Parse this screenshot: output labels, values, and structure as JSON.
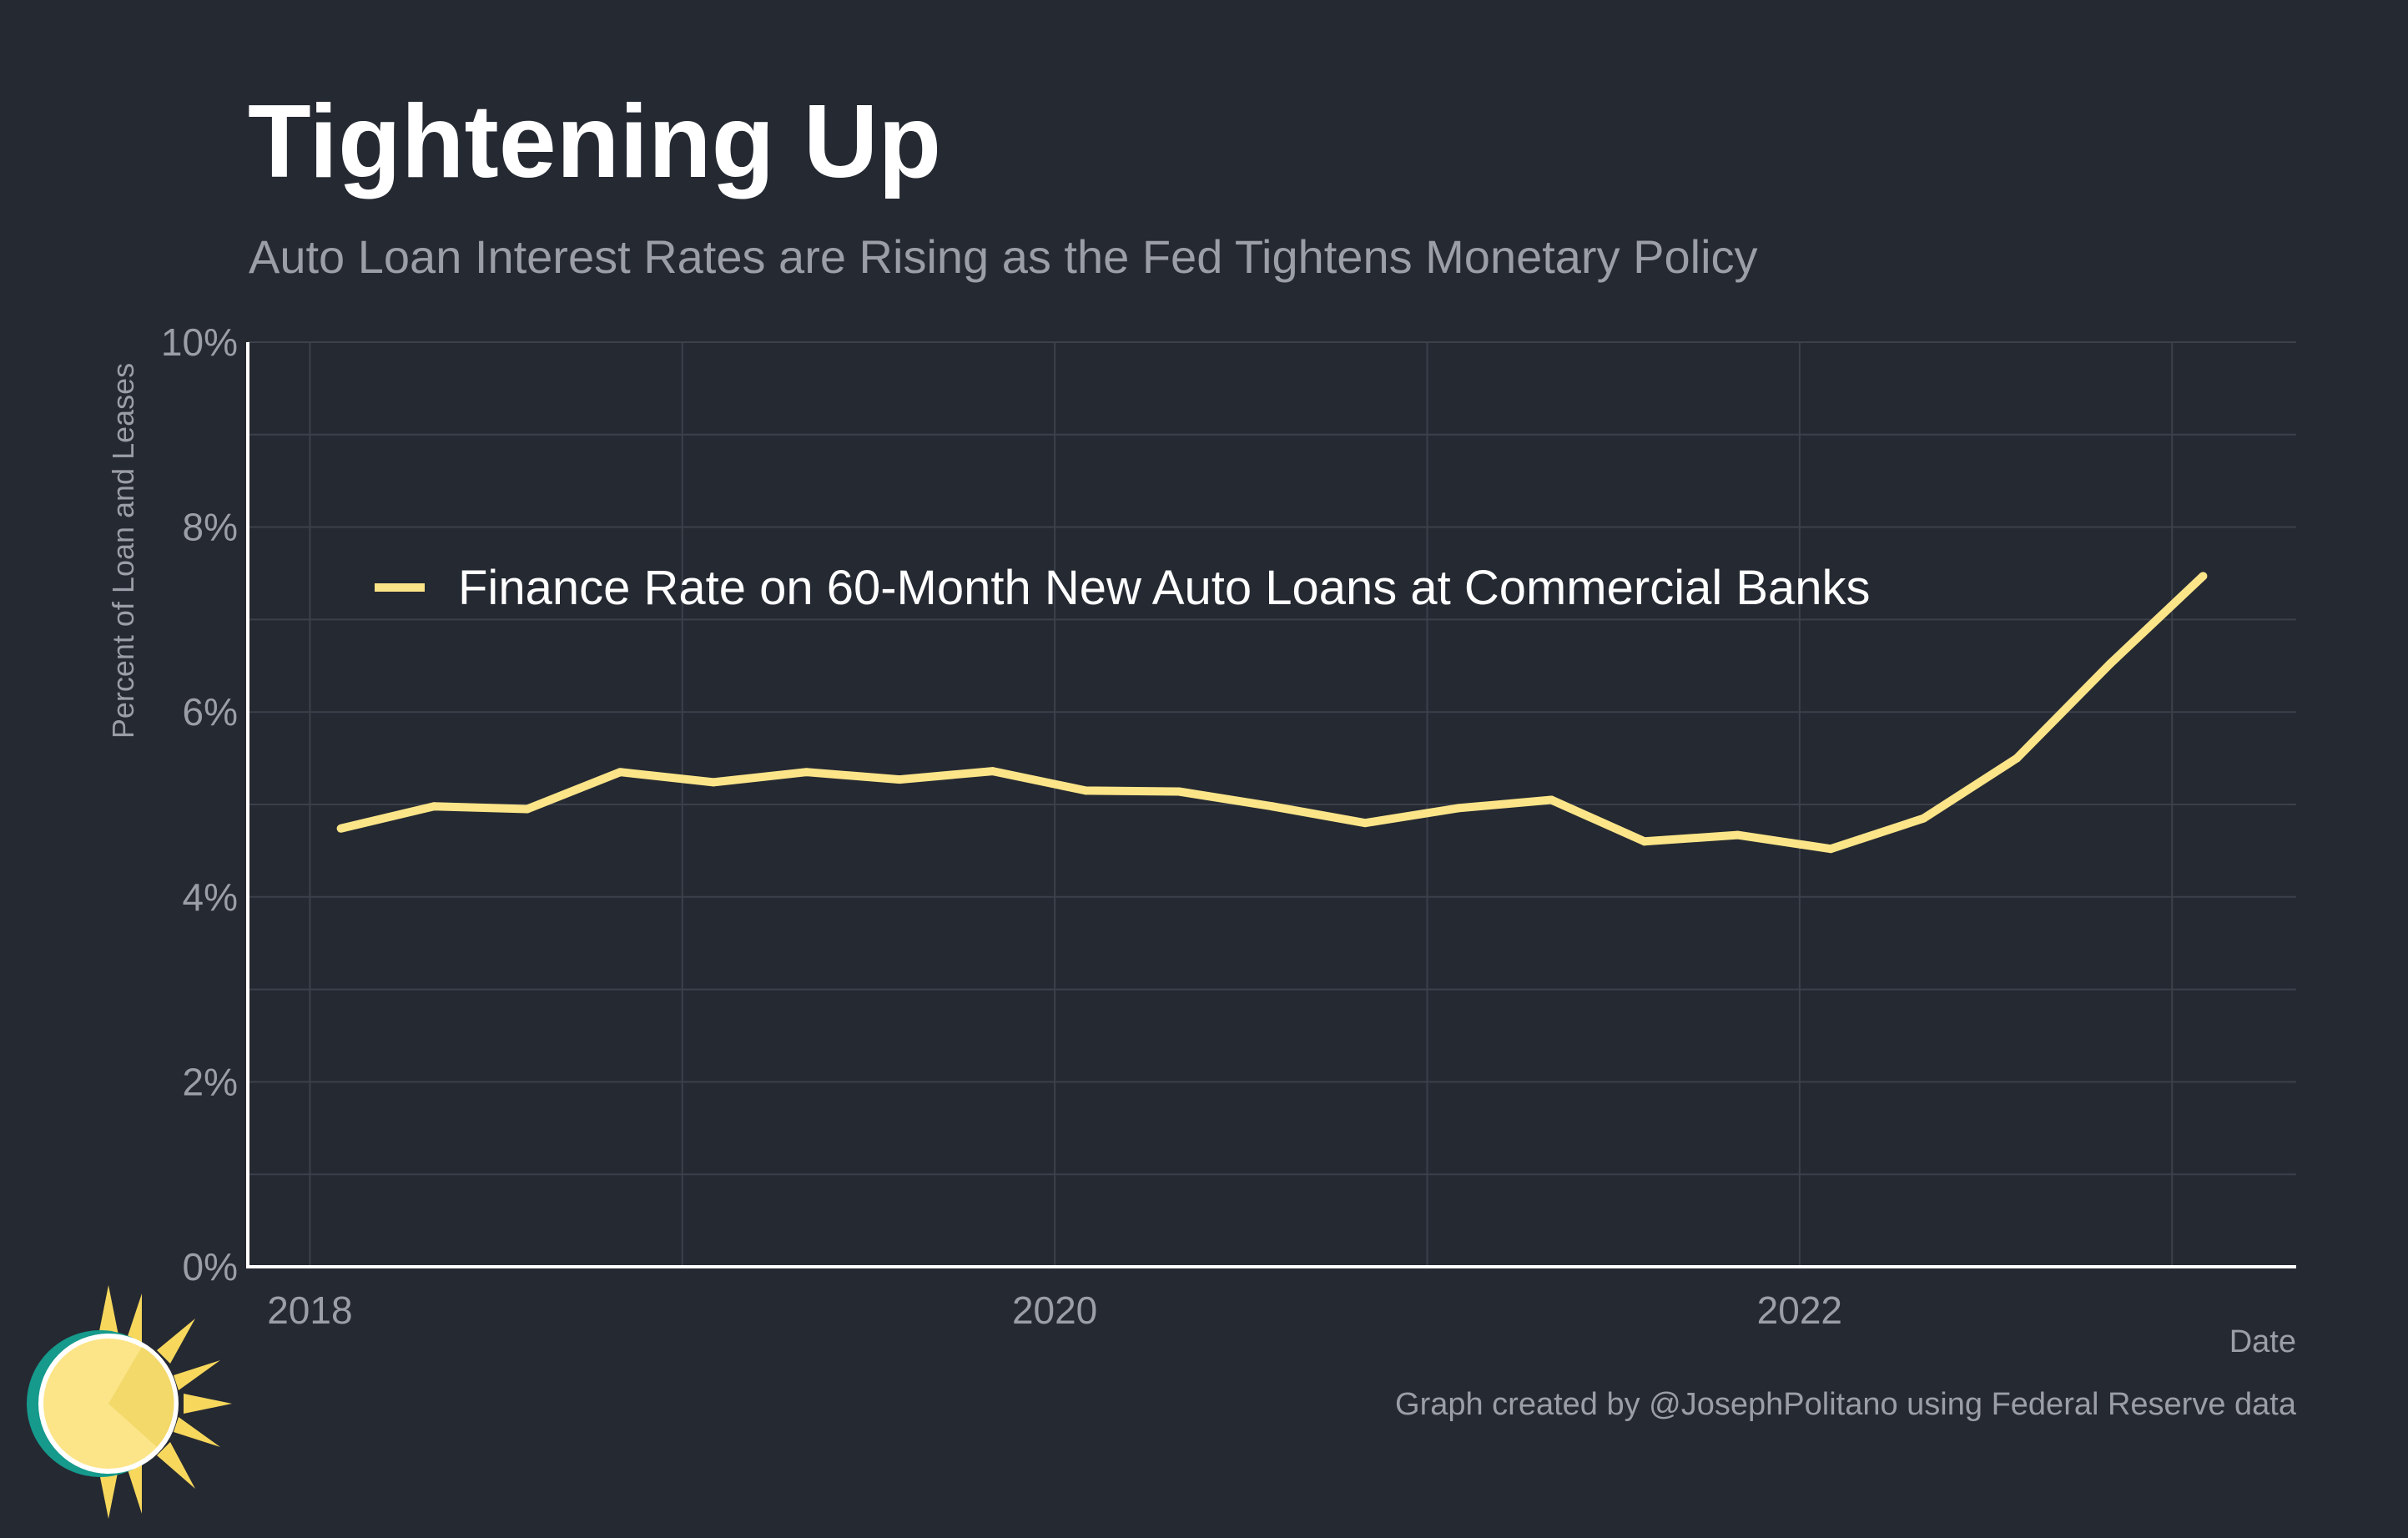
{
  "title": "Tightening Up",
  "subtitle": "Auto Loan Interest Rates are Rising as the Fed Tightens Monetary Policy",
  "caption": "Graph created by @JosephPolitano using Federal Reserve data",
  "colors": {
    "background": "#252932",
    "line": "#fce588",
    "grid": "#3c404a",
    "axis_text": "#9b9ea6",
    "text": "#ffffff"
  },
  "chart_data": {
    "type": "line",
    "title": "Tightening Up",
    "subtitle": "Auto Loan Interest Rates are Rising as the Fed Tightens Monetary Policy",
    "xlabel": "Date",
    "ylabel": "Percent of Loan and Leases",
    "x_ticks": [
      "2018",
      "2020",
      "2022"
    ],
    "y_ticks": [
      "0%",
      "2%",
      "4%",
      "6%",
      "8%",
      "10%"
    ],
    "ylim": [
      0,
      10
    ],
    "xlim": [
      "2017-11",
      "2023-05"
    ],
    "grid": true,
    "legend_position": "top-left",
    "series": [
      {
        "name": "Finance Rate on 60-Month New Auto Loans at Commercial Banks",
        "color": "#fce588",
        "points": [
          {
            "x": "2018-02",
            "y": 4.74
          },
          {
            "x": "2018-05",
            "y": 4.98
          },
          {
            "x": "2018-08",
            "y": 4.95
          },
          {
            "x": "2018-11",
            "y": 5.35
          },
          {
            "x": "2019-02",
            "y": 5.24
          },
          {
            "x": "2019-05",
            "y": 5.35
          },
          {
            "x": "2019-08",
            "y": 5.27
          },
          {
            "x": "2019-11",
            "y": 5.36
          },
          {
            "x": "2020-02",
            "y": 5.15
          },
          {
            "x": "2020-05",
            "y": 5.14
          },
          {
            "x": "2020-08",
            "y": 4.98
          },
          {
            "x": "2020-11",
            "y": 4.8
          },
          {
            "x": "2021-02",
            "y": 4.96
          },
          {
            "x": "2021-05",
            "y": 5.05
          },
          {
            "x": "2021-08",
            "y": 4.6
          },
          {
            "x": "2021-11",
            "y": 4.67
          },
          {
            "x": "2022-02",
            "y": 4.52
          },
          {
            "x": "2022-05",
            "y": 4.85
          },
          {
            "x": "2022-08",
            "y": 5.5
          },
          {
            "x": "2022-11",
            "y": 6.52
          },
          {
            "x": "2023-02",
            "y": 7.47
          }
        ]
      }
    ]
  }
}
